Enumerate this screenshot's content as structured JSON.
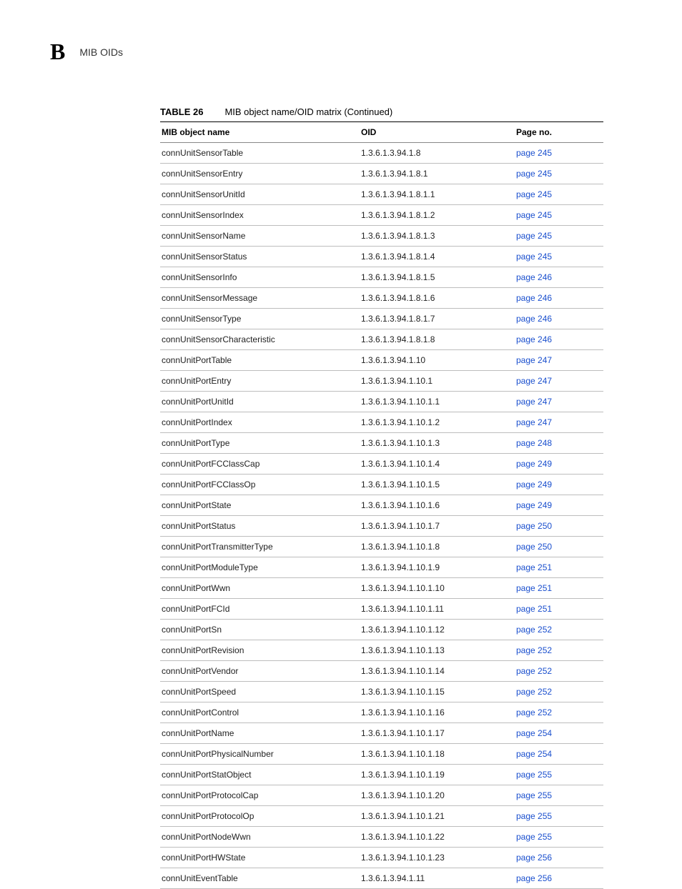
{
  "header": {
    "appendix_letter": "B",
    "running_title": "MIB OIDs"
  },
  "table": {
    "caption_label": "TABLE 26",
    "caption_text": "MIB object name/OID matrix (Continued)",
    "columns": [
      "MIB object name",
      "OID",
      "Page no."
    ],
    "rows": [
      {
        "name": "connUnitSensorTable",
        "oid": "1.3.6.1.3.94.1.8",
        "page": "page 245"
      },
      {
        "name": "connUnitSensorEntry",
        "oid": "1.3.6.1.3.94.1.8.1",
        "page": "page 245"
      },
      {
        "name": "connUnitSensorUnitId",
        "oid": "1.3.6.1.3.94.1.8.1.1",
        "page": "page 245"
      },
      {
        "name": "connUnitSensorIndex",
        "oid": "1.3.6.1.3.94.1.8.1.2",
        "page": "page 245"
      },
      {
        "name": "connUnitSensorName",
        "oid": "1.3.6.1.3.94.1.8.1.3",
        "page": "page 245"
      },
      {
        "name": "connUnitSensorStatus",
        "oid": "1.3.6.1.3.94.1.8.1.4",
        "page": "page 245"
      },
      {
        "name": "connUnitSensorInfo",
        "oid": "1.3.6.1.3.94.1.8.1.5",
        "page": "page 246"
      },
      {
        "name": "connUnitSensorMessage",
        "oid": "1.3.6.1.3.94.1.8.1.6",
        "page": "page 246"
      },
      {
        "name": "connUnitSensorType",
        "oid": "1.3.6.1.3.94.1.8.1.7",
        "page": "page 246"
      },
      {
        "name": "connUnitSensorCharacteristic",
        "oid": "1.3.6.1.3.94.1.8.1.8",
        "page": "page 246"
      },
      {
        "name": "connUnitPortTable",
        "oid": "1.3.6.1.3.94.1.10",
        "page": "page 247"
      },
      {
        "name": "connUnitPortEntry",
        "oid": "1.3.6.1.3.94.1.10.1",
        "page": "page 247"
      },
      {
        "name": "connUnitPortUnitId",
        "oid": "1.3.6.1.3.94.1.10.1.1",
        "page": "page 247"
      },
      {
        "name": "connUnitPortIndex",
        "oid": "1.3.6.1.3.94.1.10.1.2",
        "page": "page 247"
      },
      {
        "name": "connUnitPortType",
        "oid": "1.3.6.1.3.94.1.10.1.3",
        "page": "page 248"
      },
      {
        "name": "connUnitPortFCClassCap",
        "oid": "1.3.6.1.3.94.1.10.1.4",
        "page": "page 249"
      },
      {
        "name": "connUnitPortFCClassOp",
        "oid": "1.3.6.1.3.94.1.10.1.5",
        "page": "page 249"
      },
      {
        "name": "connUnitPortState",
        "oid": "1.3.6.1.3.94.1.10.1.6",
        "page": "page 249"
      },
      {
        "name": "connUnitPortStatus",
        "oid": "1.3.6.1.3.94.1.10.1.7",
        "page": "page 250"
      },
      {
        "name": "connUnitPortTransmitterType",
        "oid": "1.3.6.1.3.94.1.10.1.8",
        "page": "page 250"
      },
      {
        "name": "connUnitPortModuleType",
        "oid": "1.3.6.1.3.94.1.10.1.9",
        "page": "page 251"
      },
      {
        "name": "connUnitPortWwn",
        "oid": "1.3.6.1.3.94.1.10.1.10",
        "page": "page 251"
      },
      {
        "name": "connUnitPortFCId",
        "oid": "1.3.6.1.3.94.1.10.1.11",
        "page": "page 251"
      },
      {
        "name": "connUnitPortSn",
        "oid": "1.3.6.1.3.94.1.10.1.12",
        "page": "page 252"
      },
      {
        "name": "connUnitPortRevision",
        "oid": "1.3.6.1.3.94.1.10.1.13",
        "page": "page 252"
      },
      {
        "name": "connUnitPortVendor",
        "oid": "1.3.6.1.3.94.1.10.1.14",
        "page": "page 252"
      },
      {
        "name": "connUnitPortSpeed",
        "oid": "1.3.6.1.3.94.1.10.1.15",
        "page": "page 252"
      },
      {
        "name": "connUnitPortControl",
        "oid": "1.3.6.1.3.94.1.10.1.16",
        "page": "page 252"
      },
      {
        "name": "connUnitPortName",
        "oid": "1.3.6.1.3.94.1.10.1.17",
        "page": "page 254"
      },
      {
        "name": "connUnitPortPhysicalNumber",
        "oid": "1.3.6.1.3.94.1.10.1.18",
        "page": "page 254"
      },
      {
        "name": "connUnitPortStatObject",
        "oid": "1.3.6.1.3.94.1.10.1.19",
        "page": "page 255"
      },
      {
        "name": "connUnitPortProtocolCap",
        "oid": "1.3.6.1.3.94.1.10.1.20",
        "page": "page 255"
      },
      {
        "name": "connUnitPortProtocolOp",
        "oid": "1.3.6.1.3.94.1.10.1.21",
        "page": "page 255"
      },
      {
        "name": "connUnitPortNodeWwn",
        "oid": "1.3.6.1.3.94.1.10.1.22",
        "page": "page 255"
      },
      {
        "name": "connUnitPortHWState",
        "oid": "1.3.6.1.3.94.1.10.1.23",
        "page": "page 256"
      },
      {
        "name": "connUnitEventTable",
        "oid": "1.3.6.1.3.94.1.11",
        "page": "page 256"
      }
    ]
  }
}
